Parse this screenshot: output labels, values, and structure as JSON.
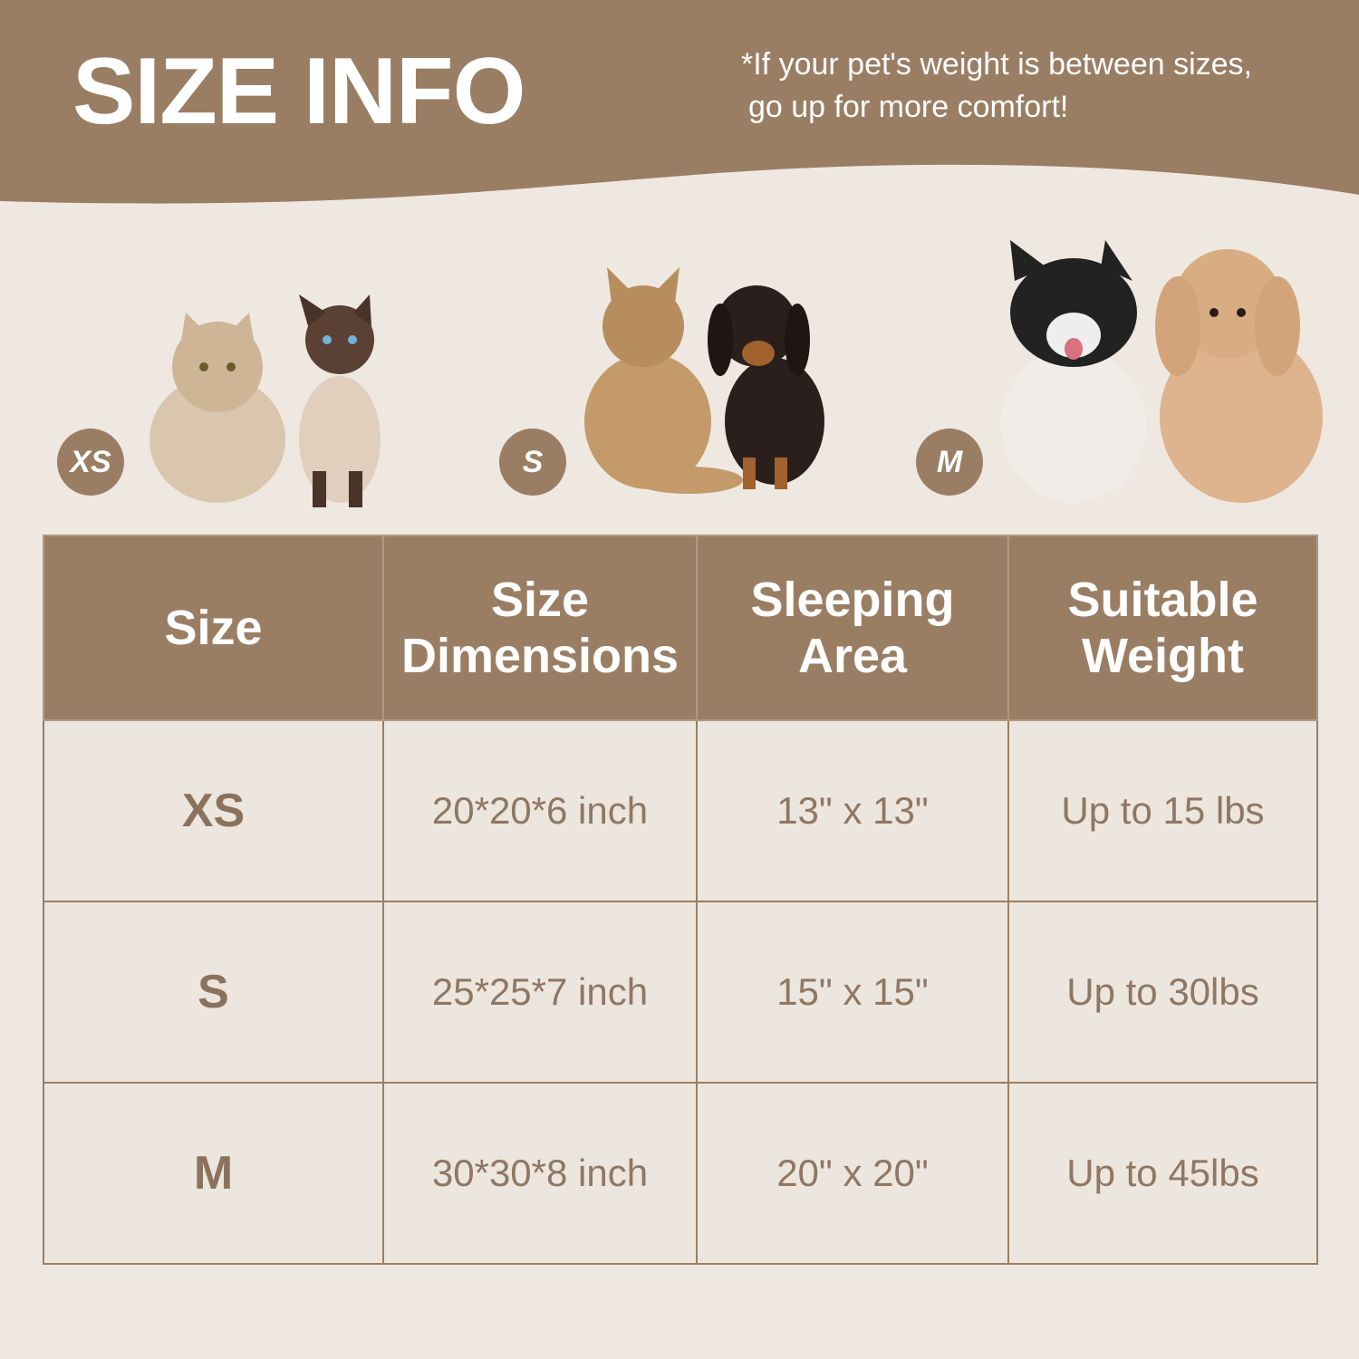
{
  "header": {
    "title": "SIZE INFO",
    "note_line1": "*If your pet's weight is between sizes,",
    "note_line2": "go up for more comfort!"
  },
  "colors": {
    "brand": "#9a7e64",
    "background": "#eee8e1",
    "text": "#8f7763"
  },
  "size_groups": [
    {
      "badge": "XS",
      "pets": [
        "persian-cat",
        "siamese-cat"
      ]
    },
    {
      "badge": "S",
      "pets": [
        "maine-coon-cat",
        "dachshund"
      ]
    },
    {
      "badge": "M",
      "pets": [
        "french-bulldog",
        "poodle"
      ]
    }
  ],
  "table": {
    "headers": [
      "Size",
      "Size Dimensions",
      "Sleeping Area",
      "Suitable Weight"
    ],
    "rows": [
      [
        "XS",
        "20*20*6 inch",
        "13\" x 13\"",
        "Up to 15 lbs"
      ],
      [
        "S",
        "25*25*7 inch",
        "15\" x 15\"",
        "Up to 30lbs"
      ],
      [
        "M",
        "30*30*8 inch",
        "20\" x 20\"",
        "Up to 45lbs"
      ]
    ]
  }
}
